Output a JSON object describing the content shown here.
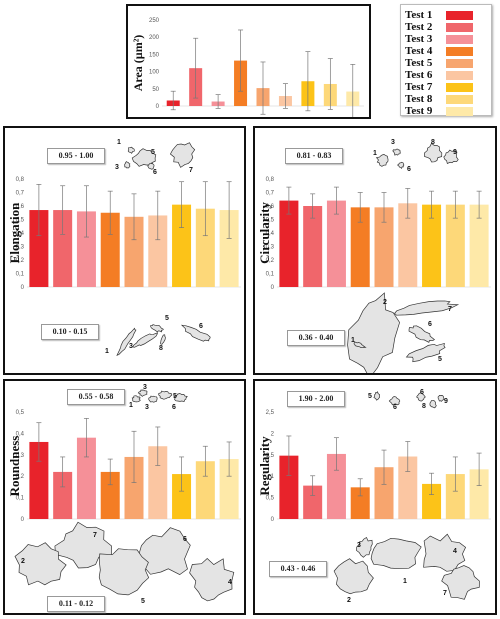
{
  "legend": {
    "items": [
      {
        "label": "Test 1",
        "color": "#e8232b"
      },
      {
        "label": "Test 2",
        "color": "#f0666b"
      },
      {
        "label": "Test 3",
        "color": "#f59098"
      },
      {
        "label": "Test 4",
        "color": "#f47d24"
      },
      {
        "label": "Test 5",
        "color": "#f7a56e"
      },
      {
        "label": "Test 6",
        "color": "#fbc6a2"
      },
      {
        "label": "Test 7",
        "color": "#fcc318"
      },
      {
        "label": "Test 8",
        "color": "#fdd879"
      },
      {
        "label": "Test 9",
        "color": "#fee9a8"
      }
    ]
  },
  "chart_data": [
    {
      "type": "bar",
      "ylabel": "Area (µm²)",
      "ylim": [
        0,
        250
      ],
      "yticks": [
        "0",
        "50",
        "100",
        "150",
        "200",
        "250"
      ],
      "values": [
        16,
        110,
        13,
        132,
        52,
        29,
        72,
        64,
        42
      ],
      "errors": [
        27,
        87,
        20,
        89,
        76,
        36,
        86,
        74,
        79
      ]
    },
    {
      "type": "bar",
      "ylabel": "Elongation",
      "ylim": [
        0,
        0.8
      ],
      "yticks": [
        "0",
        "0,1",
        "0,2",
        "0,3",
        "0,4",
        "0,5",
        "0,6",
        "0,7",
        "0,8"
      ],
      "values": [
        0.57,
        0.57,
        0.56,
        0.55,
        0.52,
        0.53,
        0.61,
        0.58,
        0.57
      ],
      "errors": [
        0.19,
        0.18,
        0.19,
        0.16,
        0.17,
        0.18,
        0.17,
        0.2,
        0.21
      ],
      "range_top": "0.95 - 1.00",
      "range_bottom": "0.10 - 0.15",
      "shape_numbers_top": [
        "1",
        "3",
        "5",
        "6",
        "7"
      ],
      "shape_numbers_bottom": [
        "1",
        "3",
        "5",
        "8",
        "6"
      ]
    },
    {
      "type": "bar",
      "ylabel": "Circularity",
      "ylim": [
        0,
        0.8
      ],
      "yticks": [
        "0",
        "0,1",
        "0,2",
        "0,3",
        "0,4",
        "0,5",
        "0,6",
        "0,7",
        "0,8"
      ],
      "values": [
        0.64,
        0.6,
        0.64,
        0.59,
        0.59,
        0.62,
        0.61,
        0.61,
        0.61
      ],
      "errors": [
        0.1,
        0.09,
        0.1,
        0.11,
        0.11,
        0.11,
        0.1,
        0.1,
        0.1
      ],
      "range_top": "0.81 - 0.83",
      "range_bottom": "0.36 - 0.40",
      "shape_numbers_top": [
        "3",
        "1",
        "6",
        "8",
        "9"
      ],
      "shape_numbers_bottom": [
        "2",
        "7",
        "6",
        "1",
        "5"
      ]
    },
    {
      "type": "bar",
      "ylabel": "Roundness",
      "ylim": [
        0,
        0.5
      ],
      "yticks": [
        "0",
        "0,1",
        "0,2",
        "0,3",
        "0,4",
        "0,5"
      ],
      "values": [
        0.36,
        0.22,
        0.38,
        0.22,
        0.29,
        0.34,
        0.21,
        0.27,
        0.28
      ],
      "errors": [
        0.09,
        0.07,
        0.09,
        0.06,
        0.12,
        0.09,
        0.08,
        0.07,
        0.08
      ],
      "range_top": "0.55 - 0.58",
      "range_bottom": "0.11 - 0.12",
      "shape_numbers_top": [
        "1",
        "3",
        "3",
        "6",
        "5"
      ],
      "shape_numbers_bottom": [
        "7",
        "6",
        "2",
        "5",
        "4"
      ]
    },
    {
      "type": "bar",
      "ylabel": "Regularity",
      "ylim": [
        0,
        2.5
      ],
      "yticks": [
        "0",
        "0,5",
        "1",
        "1,5",
        "2",
        "2,5"
      ],
      "values": [
        1.48,
        0.78,
        1.52,
        0.74,
        1.21,
        1.46,
        0.82,
        1.05,
        1.16
      ],
      "errors": [
        0.46,
        0.23,
        0.38,
        0.2,
        0.4,
        0.35,
        0.25,
        0.4,
        0.38
      ],
      "range_top": "1.90 - 2.00",
      "range_bottom": "0.43 - 0.46",
      "shape_numbers_top": [
        "5",
        "6",
        "6",
        "8",
        "9"
      ],
      "shape_numbers_bottom": [
        "3",
        "1",
        "2",
        "4",
        "7"
      ]
    }
  ]
}
